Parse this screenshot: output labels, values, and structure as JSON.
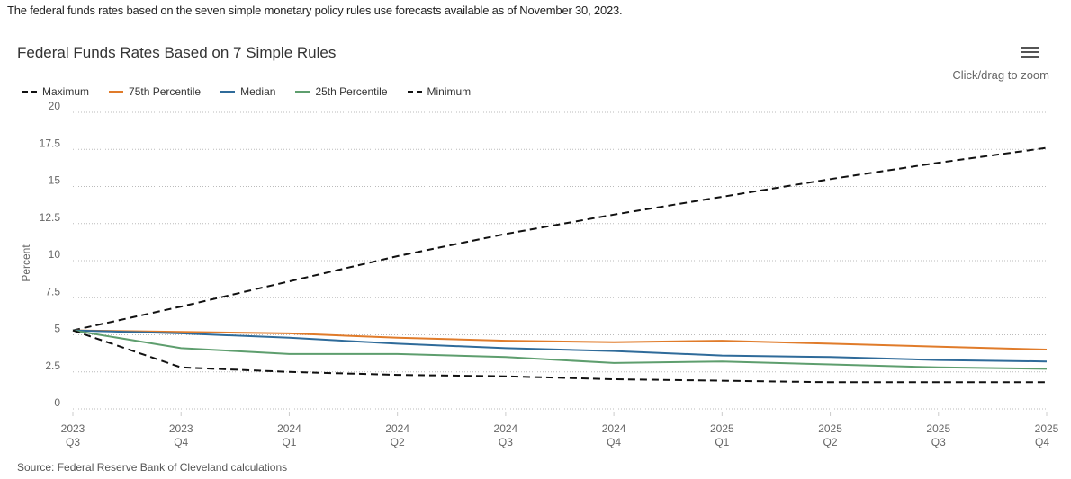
{
  "intro_text": "The federal funds rates based on the seven simple monetary policy rules use forecasts available as of November 30, 2023.",
  "menu_icon": "hamburger-menu-icon",
  "zoom_hint": "Click/drag to zoom",
  "source": "Source: Federal Reserve Bank of Cleveland calculations",
  "chart_data": {
    "type": "line",
    "title": "Federal Funds Rates Based on 7 Simple Rules",
    "xlabel": "",
    "ylabel": "Percent",
    "ylim": [
      0,
      20
    ],
    "yticks": [
      "0",
      "2.5",
      "5",
      "7.5",
      "10",
      "12.5",
      "15",
      "17.5",
      "20"
    ],
    "grid": "horizontal dotted",
    "legend_position": "top-left",
    "categories": [
      [
        "2023",
        "Q3"
      ],
      [
        "2023",
        "Q4"
      ],
      [
        "2024",
        "Q1"
      ],
      [
        "2024",
        "Q2"
      ],
      [
        "2024",
        "Q3"
      ],
      [
        "2024",
        "Q4"
      ],
      [
        "2025",
        "Q1"
      ],
      [
        "2025",
        "Q2"
      ],
      [
        "2025",
        "Q3"
      ],
      [
        "2025",
        "Q4"
      ]
    ],
    "series": [
      {
        "name": "Maximum",
        "color": "#111111",
        "dashed": true,
        "values": [
          5.3,
          6.9,
          8.6,
          10.3,
          11.8,
          13.1,
          14.3,
          15.5,
          16.6,
          17.6
        ]
      },
      {
        "name": "75th Percentile",
        "color": "#e07b2a",
        "dashed": false,
        "values": [
          5.3,
          5.2,
          5.1,
          4.8,
          4.6,
          4.5,
          4.6,
          4.4,
          4.2,
          4.0
        ]
      },
      {
        "name": "Median",
        "color": "#2f6b9a",
        "dashed": false,
        "values": [
          5.3,
          5.1,
          4.8,
          4.4,
          4.1,
          3.9,
          3.6,
          3.5,
          3.3,
          3.2
        ]
      },
      {
        "name": "25th Percentile",
        "color": "#5e9e6e",
        "dashed": false,
        "values": [
          5.3,
          4.1,
          3.7,
          3.7,
          3.5,
          3.1,
          3.2,
          3.0,
          2.8,
          2.7
        ]
      },
      {
        "name": "Minimum",
        "color": "#111111",
        "dashed": true,
        "values": [
          5.3,
          2.8,
          2.5,
          2.3,
          2.2,
          2.0,
          1.9,
          1.8,
          1.8,
          1.8
        ]
      }
    ]
  }
}
